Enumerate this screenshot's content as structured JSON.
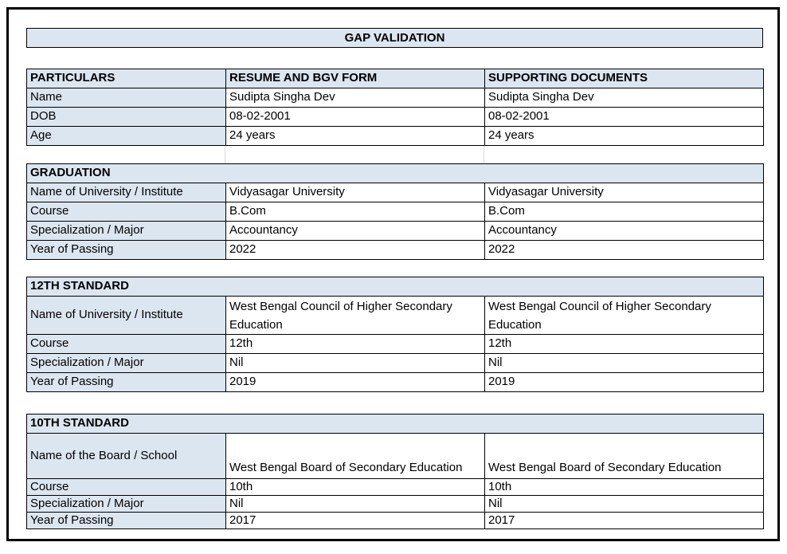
{
  "title": "GAP VALIDATION",
  "colors": {
    "header_fill": "#dce6f1",
    "table_border": "#000000",
    "frame_border": "#000000",
    "gridline": "#d9d9d9"
  },
  "particulars": {
    "headers": [
      "PARTICULARS",
      "RESUME AND BGV FORM",
      "SUPPORTING DOCUMENTS"
    ],
    "rows": [
      {
        "label": "Name",
        "resume": "Sudipta Singha Dev",
        "supporting": "Sudipta Singha Dev"
      },
      {
        "label": "DOB",
        "resume": "08-02-2001",
        "supporting": "08-02-2001"
      },
      {
        "label": "Age",
        "resume": "24 years",
        "supporting": "24 years"
      }
    ]
  },
  "sections": [
    {
      "title": "GRADUATION",
      "rows": [
        {
          "label": "Name of University / Institute",
          "resume": "Vidyasagar University",
          "supporting": "Vidyasagar University"
        },
        {
          "label": "Course",
          "resume": "B.Com",
          "supporting": "B.Com"
        },
        {
          "label": "Specialization / Major",
          "resume": "Accountancy",
          "supporting": "Accountancy"
        },
        {
          "label": "Year of Passing",
          "resume": "2022",
          "supporting": "2022"
        }
      ]
    },
    {
      "title": "12TH STANDARD",
      "rows": [
        {
          "label": "Name of University / Institute",
          "resume": "West Bengal Council of Higher Secondary Education",
          "supporting": "West Bengal Council of Higher Secondary Education"
        },
        {
          "label": "Course",
          "resume": "12th",
          "supporting": "12th"
        },
        {
          "label": "Specialization / Major",
          "resume": "Nil",
          "supporting": "Nil"
        },
        {
          "label": "Year of Passing",
          "resume": "2019",
          "supporting": "2019"
        }
      ]
    },
    {
      "title": "10TH STANDARD",
      "rows": [
        {
          "label": "Name of the Board / School",
          "resume": "West Bengal Board of Secondary Education",
          "supporting": "West Bengal Board of Secondary Education"
        },
        {
          "label": "Course",
          "resume": "10th",
          "supporting": "10th"
        },
        {
          "label": "Specialization / Major",
          "resume": "Nil",
          "supporting": "Nil"
        },
        {
          "label": "Year of Passing",
          "resume": "2017",
          "supporting": "2017"
        }
      ]
    }
  ]
}
